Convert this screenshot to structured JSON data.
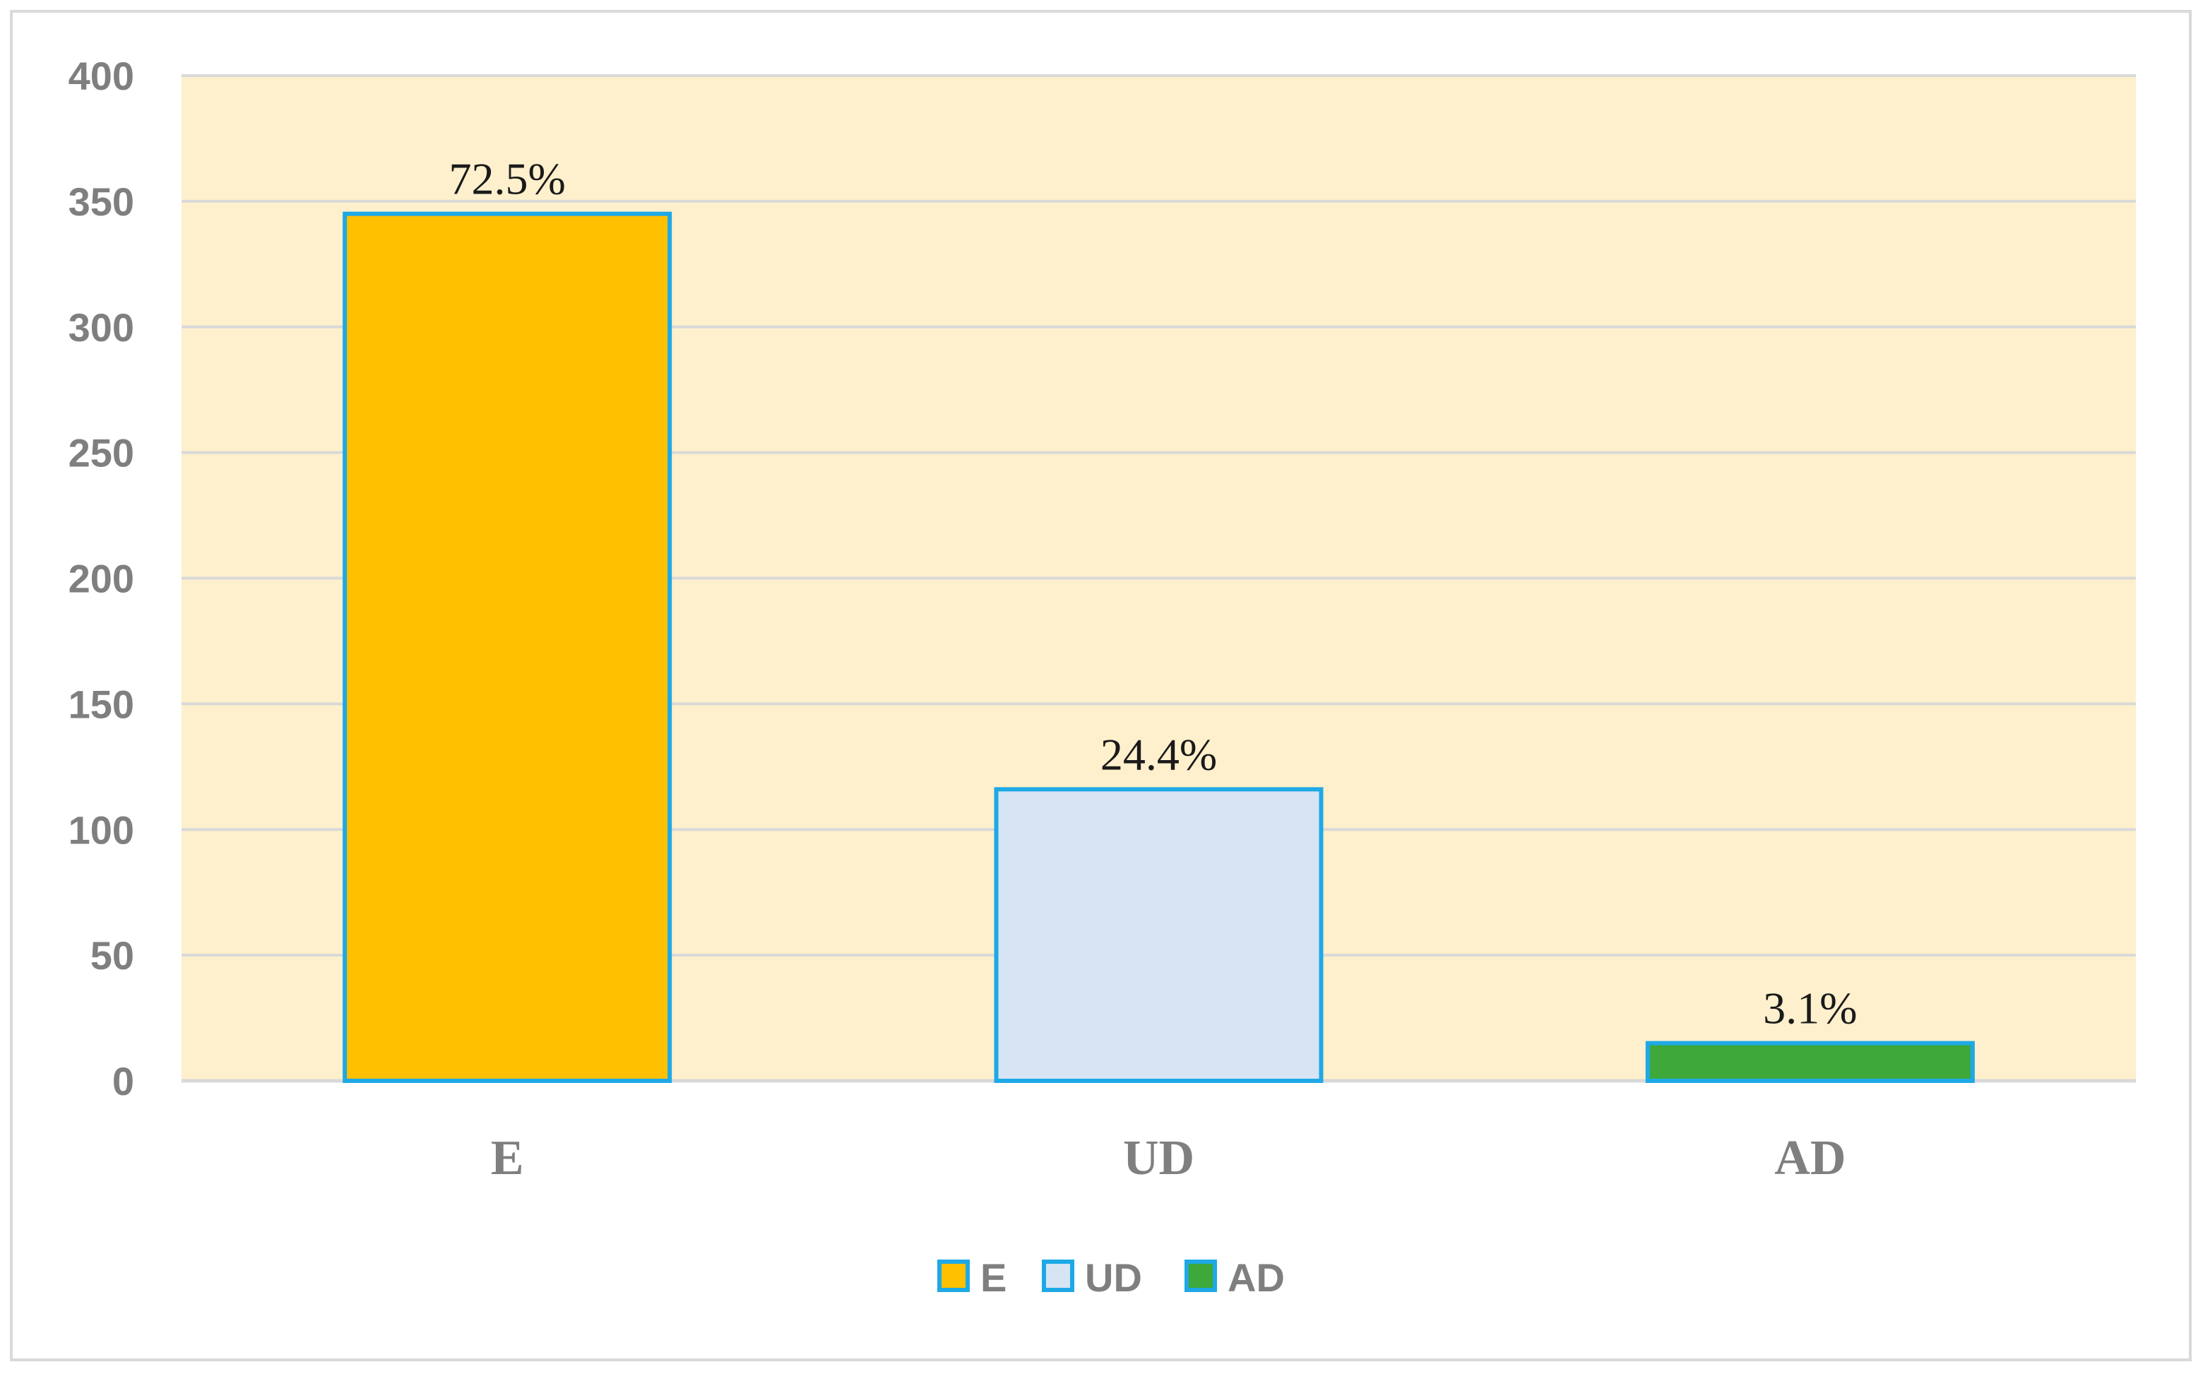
{
  "chart_data": {
    "type": "bar",
    "categories": [
      "E",
      "UD",
      "AD"
    ],
    "values": [
      345,
      116,
      15
    ],
    "data_labels": [
      "72.5%",
      "24.4%",
      "3.1%"
    ],
    "bar_colors": [
      "#ffc000",
      "#d6e4f4",
      "#3ea83a"
    ],
    "bar_edge_color": "#1ea9e6",
    "plot_background": "#fef0cc",
    "gridline_color": "#d9d9d9",
    "ylim": [
      0,
      400
    ],
    "yticks": [
      "0",
      "50",
      "100",
      "150",
      "200",
      "250",
      "300",
      "350",
      "400"
    ],
    "grid": true,
    "legend_position": "bottom",
    "legend": [
      "E",
      "UD",
      "AD"
    ],
    "title": "",
    "xlabel": "",
    "ylabel": ""
  }
}
